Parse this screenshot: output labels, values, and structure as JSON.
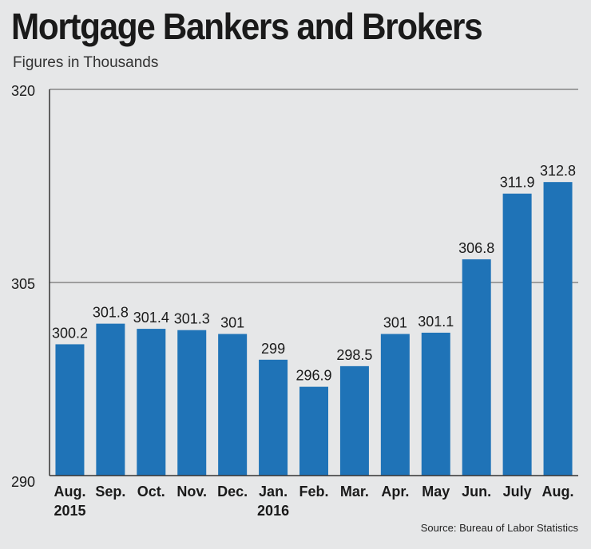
{
  "header": {
    "title": "Mortgage Bankers and Brokers",
    "subtitle": "Figures in Thousands"
  },
  "footer": {
    "source": "Source: Bureau of Labor Statistics"
  },
  "colors": {
    "bar": "#1f73b7",
    "background": "#e6e7e8",
    "axis": "#333333",
    "grid": "#555555"
  },
  "chart_data": {
    "type": "bar",
    "title": "Mortgage Bankers and Brokers",
    "subtitle": "Figures in Thousands",
    "categories": [
      "Aug.",
      "Sep.",
      "Oct.",
      "Nov.",
      "Dec.",
      "Jan.",
      "Feb.",
      "Mar.",
      "Apr.",
      "May",
      "Jun.",
      "July",
      "Aug."
    ],
    "category_years": [
      "2015",
      "",
      "",
      "",
      "",
      "2016",
      "",
      "",
      "",
      "",
      "",
      "",
      ""
    ],
    "values": [
      300.2,
      301.8,
      301.4,
      301.3,
      301,
      299,
      296.9,
      298.5,
      301,
      301.1,
      306.8,
      311.9,
      312.8
    ],
    "data_labels": [
      "300.2",
      "301.8",
      "301.4",
      "301.3",
      "301",
      "299",
      "296.9",
      "298.5",
      "301",
      "301.1",
      "306.8",
      "311.9",
      "312.8"
    ],
    "ylim": [
      290,
      320
    ],
    "yticks": [
      290,
      305,
      320
    ],
    "ytick_labels": [
      "290",
      "305",
      "320"
    ],
    "grid": true,
    "legend": "none"
  }
}
